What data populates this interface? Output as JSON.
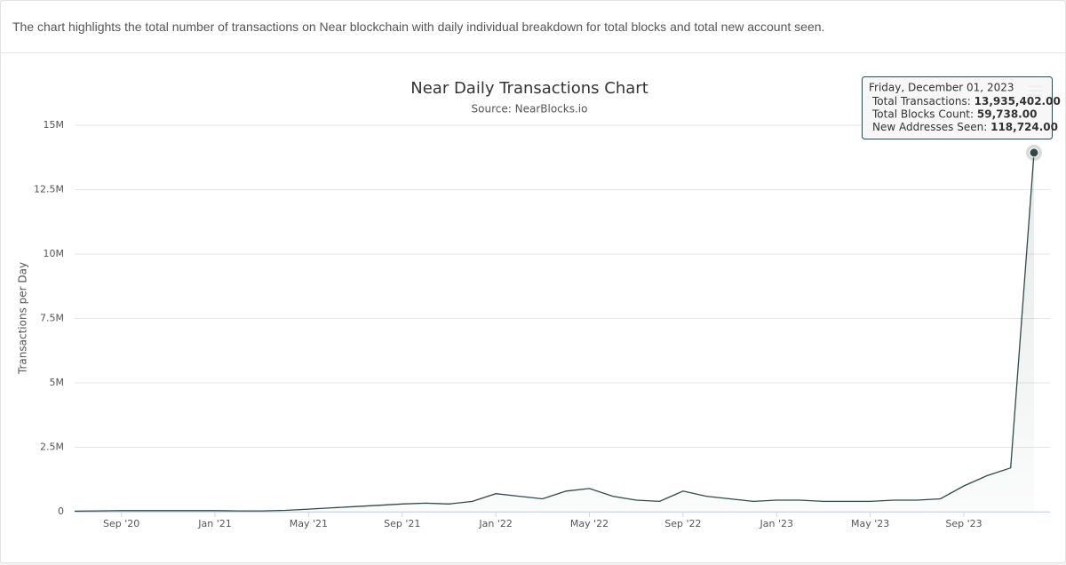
{
  "description": "The chart highlights the total number of transactions on Near blockchain with daily individual breakdown for total blocks and total new account seen.",
  "chart_data": {
    "type": "line",
    "title": "Near Daily Transactions Chart",
    "subtitle": "Source: NearBlocks.io",
    "y_label": "Transactions per Day",
    "x": [
      "2020-07",
      "2020-08",
      "2020-09",
      "2020-10",
      "2020-11",
      "2020-12",
      "2021-01",
      "2021-02",
      "2021-03",
      "2021-04",
      "2021-05",
      "2021-06",
      "2021-07",
      "2021-08",
      "2021-09",
      "2021-10",
      "2021-11",
      "2021-12",
      "2022-01",
      "2022-02",
      "2022-03",
      "2022-04",
      "2022-05",
      "2022-06",
      "2022-07",
      "2022-08",
      "2022-09",
      "2022-10",
      "2022-11",
      "2022-12",
      "2023-01",
      "2023-02",
      "2023-03",
      "2023-04",
      "2023-05",
      "2023-06",
      "2023-07",
      "2023-08",
      "2023-09",
      "2023-10",
      "2023-11",
      "2023-12"
    ],
    "series": [
      {
        "name": "Total Transactions",
        "color": "#2f4a48",
        "values": [
          20000,
          30000,
          40000,
          40000,
          40000,
          40000,
          40000,
          30000,
          30000,
          50000,
          100000,
          150000,
          200000,
          250000,
          300000,
          330000,
          300000,
          400000,
          700000,
          600000,
          500000,
          800000,
          900000,
          600000,
          450000,
          400000,
          800000,
          600000,
          500000,
          400000,
          450000,
          450000,
          400000,
          400000,
          400000,
          450000,
          450000,
          500000,
          1000000,
          1400000,
          1700000,
          13935402
        ]
      }
    ],
    "xlim": [
      "2020-07",
      "2023-12"
    ],
    "xticks": [
      {
        "value": "2020-09",
        "label": "Sep '20"
      },
      {
        "value": "2021-01",
        "label": "Jan '21"
      },
      {
        "value": "2021-05",
        "label": "May '21"
      },
      {
        "value": "2021-09",
        "label": "Sep '21"
      },
      {
        "value": "2022-01",
        "label": "Jan '22"
      },
      {
        "value": "2022-05",
        "label": "May '22"
      },
      {
        "value": "2022-09",
        "label": "Sep '22"
      },
      {
        "value": "2023-01",
        "label": "Jan '23"
      },
      {
        "value": "2023-05",
        "label": "May '23"
      },
      {
        "value": "2023-09",
        "label": "Sep '23"
      }
    ],
    "ylim": [
      0,
      15000000
    ],
    "yticks": [
      0,
      {
        "value": 2500000,
        "label": "2.5M"
      },
      {
        "value": 5000000,
        "label": "5M"
      },
      {
        "value": 7500000,
        "label": "7.5M"
      },
      {
        "value": 10000000,
        "label": "10M"
      },
      {
        "value": 12500000,
        "label": "12.5M"
      },
      {
        "value": 15000000,
        "label": "15M"
      }
    ],
    "grid": true,
    "tooltip": {
      "date": "Friday, December 01, 2023",
      "rows": [
        {
          "label": "Total Transactions:",
          "value": "13,935,402.00"
        },
        {
          "label": "Total Blocks Count:",
          "value": "59,738.00"
        },
        {
          "label": "New Addresses Seen:",
          "value": "118,724.00"
        }
      ]
    }
  }
}
